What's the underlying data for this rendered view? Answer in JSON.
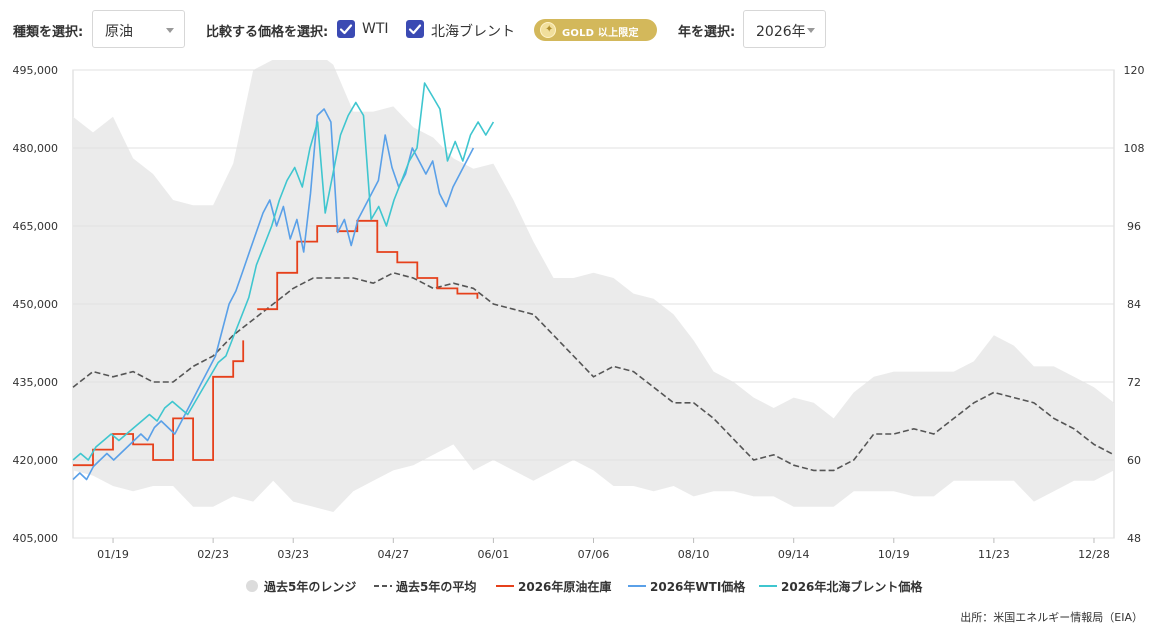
{
  "controls": {
    "type_label": "種類を選択:",
    "type_value": "原油",
    "compare_label": "比較する価格を選択:",
    "wti_label": "WTI",
    "brent_label": "北海ブレント",
    "gold_badge": "GOLD 以上限定",
    "year_label": "年を選択:",
    "year_value": "2026年"
  },
  "legend": {
    "range": "過去5年のレンジ",
    "avg": "過去5年の平均",
    "inventory": "2026年原油在庫",
    "wti": "2026年WTI価格",
    "brent": "2026年北海ブレント価格"
  },
  "source": "出所：米国エネルギー情報局（EIA）",
  "colors": {
    "range": "#ebebeb",
    "avg": "#555555",
    "inventory": "#e6401b",
    "wti": "#5aa0e8",
    "brent": "#3fc6cf",
    "check": "#3b4ab3",
    "gold": "#d3b85b"
  },
  "chart_data": {
    "type": "line",
    "x_tick_labels": [
      "01/19",
      "02/23",
      "03/23",
      "04/27",
      "06/01",
      "07/06",
      "08/10",
      "09/14",
      "10/19",
      "11/23",
      "12/28"
    ],
    "x_tick_weeks": [
      2,
      7,
      11,
      16,
      21,
      26,
      31,
      36,
      41,
      46,
      51
    ],
    "y_left": {
      "ticks": [
        405000,
        420000,
        435000,
        450000,
        465000,
        480000,
        495000
      ],
      "ylim": [
        405000,
        495000
      ]
    },
    "y_right": {
      "ticks": [
        48,
        60,
        72,
        84,
        96,
        108,
        120
      ],
      "ylim": [
        48,
        120
      ]
    },
    "grid": "horizontal",
    "series": [
      {
        "name": "過去5年のレンジ",
        "axis": "left",
        "kind": "band",
        "weeks": [
          0,
          1,
          2,
          3,
          4,
          5,
          6,
          7,
          8,
          9,
          10,
          11,
          12,
          13,
          14,
          15,
          16,
          17,
          18,
          19,
          20,
          21,
          22,
          23,
          24,
          25,
          26,
          27,
          28,
          29,
          30,
          31,
          32,
          33,
          34,
          35,
          36,
          37,
          38,
          39,
          40,
          41,
          42,
          43,
          44,
          45,
          46,
          47,
          48,
          49,
          50,
          51,
          52
        ],
        "low": [
          418000,
          417000,
          415000,
          414000,
          415000,
          415000,
          411000,
          411000,
          413000,
          412000,
          416000,
          412000,
          411000,
          410000,
          414000,
          416000,
          418000,
          419000,
          421000,
          423000,
          418000,
          420000,
          418000,
          416000,
          418000,
          420000,
          418000,
          415000,
          415000,
          414000,
          415000,
          413000,
          414000,
          414000,
          413000,
          413000,
          411000,
          411000,
          411000,
          414000,
          414000,
          414000,
          413000,
          413000,
          416000,
          416000,
          416000,
          416000,
          412000,
          414000,
          416000,
          416000,
          418000
        ],
        "high": [
          486000,
          483000,
          486000,
          478000,
          475000,
          470000,
          469000,
          469000,
          477000,
          495000,
          497000,
          498000,
          499000,
          496000,
          487000,
          487000,
          488000,
          484000,
          482000,
          478000,
          476000,
          477000,
          470000,
          462000,
          455000,
          455000,
          456000,
          455000,
          452000,
          451000,
          448000,
          443000,
          437000,
          435000,
          432000,
          430000,
          432000,
          431000,
          428000,
          433000,
          436000,
          437000,
          437000,
          437000,
          437000,
          439000,
          444000,
          442000,
          438000,
          438000,
          436000,
          434000,
          431000
        ]
      },
      {
        "name": "過去5年の平均",
        "axis": "left",
        "kind": "dashed",
        "weeks": [
          0,
          1,
          2,
          3,
          4,
          5,
          6,
          7,
          8,
          9,
          10,
          11,
          12,
          13,
          14,
          15,
          16,
          17,
          18,
          19,
          20,
          21,
          22,
          23,
          24,
          25,
          26,
          27,
          28,
          29,
          30,
          31,
          32,
          33,
          34,
          35,
          36,
          37,
          38,
          39,
          40,
          41,
          42,
          43,
          44,
          45,
          46,
          47,
          48,
          49,
          50,
          51,
          52
        ],
        "values": [
          434000,
          437000,
          436000,
          437000,
          435000,
          435000,
          438000,
          440000,
          444000,
          447000,
          450000,
          453000,
          455000,
          455000,
          455000,
          454000,
          456000,
          455000,
          453000,
          454000,
          453000,
          450000,
          449000,
          448000,
          444000,
          440000,
          436000,
          438000,
          437000,
          434000,
          431000,
          431000,
          428000,
          424000,
          420000,
          421000,
          419000,
          418000,
          418000,
          420000,
          425000,
          425000,
          426000,
          425000,
          428000,
          431000,
          433000,
          432000,
          431000,
          428000,
          426000,
          423000,
          421000
        ]
      },
      {
        "name": "2026年原油在庫",
        "axis": "left",
        "kind": "step",
        "segments": [
          {
            "weeks": [
              0,
              1,
              2,
              3,
              4,
              5,
              6,
              7,
              8,
              9,
              10,
              11,
              12,
              13,
              14,
              15,
              16,
              17
            ],
            "values": [
              419000,
              419000,
              422000,
              422000,
              425000,
              425000,
              423000,
              423000,
              420000,
              420000,
              428000,
              428000,
              420000,
              420000,
              436000,
              436000,
              439000,
              443000
            ]
          },
          {
            "weeks": [
              12,
              13,
              14,
              15,
              16,
              17,
              18,
              19,
              20,
              21,
              22,
              23,
              24,
              25,
              26,
              27,
              28,
              29,
              30,
              31,
              32,
              33,
              34
            ],
            "values": [
              449000,
              449000,
              456000,
              456000,
              462000,
              462000,
              465000,
              465000,
              464000,
              464000,
              466000,
              466000,
              460000,
              460000,
              458000,
              458000,
              455000,
              455000,
              453000,
              453000,
              452000,
              452000,
              451000
            ],
            "offset": 12
          }
        ]
      },
      {
        "name": "2026年WTI価格",
        "axis": "right",
        "kind": "line",
        "values": [
          57,
          58,
          57,
          59,
          60,
          61,
          60,
          61,
          62,
          63,
          64,
          63,
          65,
          66,
          65,
          64,
          66,
          68,
          70,
          72,
          74,
          76,
          80,
          84,
          86,
          89,
          92,
          95,
          98,
          100,
          96,
          99,
          94,
          97,
          92,
          101,
          113,
          114,
          112,
          95,
          97,
          93,
          97,
          99,
          101,
          103,
          110,
          105,
          102,
          104,
          108,
          106,
          104,
          106,
          101,
          99,
          102,
          104,
          106,
          108
        ]
      },
      {
        "name": "2026年北海ブレント価格",
        "axis": "right",
        "kind": "line",
        "values": [
          60,
          61,
          60,
          62,
          63,
          64,
          63,
          64,
          65,
          66,
          67,
          66,
          68,
          69,
          68,
          67,
          69,
          71,
          73,
          75,
          76,
          79,
          82,
          85,
          90,
          93,
          96,
          100,
          103,
          105,
          102,
          108,
          112,
          98,
          104,
          110,
          113,
          115,
          113,
          97,
          99,
          96,
          100,
          103,
          106,
          108,
          118,
          116,
          114,
          106,
          109,
          106,
          110,
          112,
          110,
          112
        ]
      }
    ]
  }
}
